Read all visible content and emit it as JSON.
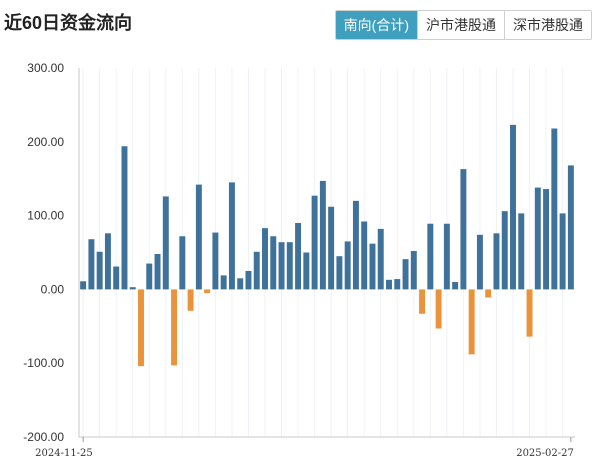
{
  "header": {
    "title": "近60日资金流向",
    "tabs": [
      {
        "label": "南向(合计)",
        "active": true
      },
      {
        "label": "沪市港股通",
        "active": false
      },
      {
        "label": "深市港股通",
        "active": false
      }
    ]
  },
  "colors": {
    "positive": "#3f729b",
    "negative": "#ea933b",
    "active_tab": "#3f9fbe"
  },
  "chart_data": {
    "type": "bar",
    "ylim": [
      -200,
      300
    ],
    "yticks": [
      "300.00",
      "200.00",
      "100.00",
      "0.00",
      "-100.00",
      "-200.00"
    ],
    "ytick_values": [
      300,
      200,
      100,
      0,
      -100,
      -200
    ],
    "xtick_labels": [
      "2024-11-25",
      "2025-02-27"
    ],
    "grid": "vertical",
    "values": [
      11,
      68,
      51,
      76,
      31,
      194,
      3,
      -104,
      35,
      48,
      126,
      -103,
      72,
      -29,
      142,
      -5,
      77,
      19,
      145,
      15,
      25,
      51,
      83,
      72,
      64,
      64,
      90,
      50,
      127,
      147,
      112,
      45,
      65,
      120,
      92,
      62,
      82,
      13,
      14,
      41,
      52,
      -33,
      89,
      -53,
      89,
      10,
      163,
      -88,
      74,
      -11,
      76,
      106,
      223,
      103,
      -64,
      138,
      136,
      218,
      103,
      168
    ]
  }
}
